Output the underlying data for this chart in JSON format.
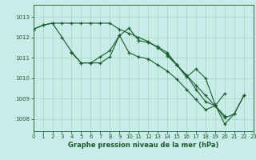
{
  "title": "Graphe pression niveau de la mer (hPa)",
  "background_color": "#c8ede8",
  "grid_color": "#a8d8cc",
  "line_color": "#1a5c2a",
  "xlim": [
    0,
    23
  ],
  "ylim": [
    1007.4,
    1013.6
  ],
  "yticks": [
    1008,
    1009,
    1010,
    1011,
    1012,
    1013
  ],
  "xticks": [
    0,
    1,
    2,
    3,
    4,
    5,
    6,
    7,
    8,
    9,
    10,
    11,
    12,
    13,
    14,
    15,
    16,
    17,
    18,
    19,
    20,
    21,
    22,
    23
  ],
  "series": [
    {
      "x": [
        0,
        1,
        2,
        3,
        4,
        5,
        6,
        7,
        8,
        9,
        10,
        11,
        12,
        13,
        14,
        15,
        16,
        17,
        18,
        19,
        20,
        21,
        22
      ],
      "y": [
        1012.4,
        1012.6,
        1012.7,
        1012.0,
        1011.3,
        1010.75,
        1010.75,
        1011.05,
        1011.35,
        1012.1,
        1012.45,
        1011.85,
        1011.75,
        1011.55,
        1011.25,
        1010.65,
        1010.05,
        1010.45,
        1010.0,
        1008.7,
        1007.75,
        1008.25,
        1009.15
      ]
    },
    {
      "x": [
        0,
        1,
        2,
        3,
        4,
        5,
        6,
        7,
        8,
        9,
        10,
        11,
        12,
        13,
        14,
        15,
        16,
        17,
        18,
        19,
        20
      ],
      "y": [
        1012.4,
        1012.6,
        1012.7,
        1012.7,
        1012.7,
        1012.7,
        1012.7,
        1012.7,
        1012.7,
        1012.4,
        1012.2,
        1012.0,
        1011.8,
        1011.5,
        1011.15,
        1010.65,
        1010.15,
        1009.65,
        1009.15,
        1008.65,
        1008.15
      ]
    },
    {
      "x": [
        4,
        5,
        6,
        7,
        8,
        9,
        10,
        11,
        12,
        13,
        14,
        15,
        16,
        17,
        18,
        19,
        20
      ],
      "y": [
        1011.25,
        1010.75,
        1010.75,
        1010.75,
        1011.05,
        1012.1,
        1011.25,
        1011.05,
        1010.95,
        1010.65,
        1010.35,
        1009.95,
        1009.45,
        1008.95,
        1008.45,
        1008.65,
        1009.25
      ]
    },
    {
      "x": [
        14,
        15,
        16,
        17,
        18,
        19,
        20,
        21,
        22
      ],
      "y": [
        1011.1,
        1010.65,
        1010.15,
        1009.45,
        1008.85,
        1008.65,
        1008.05,
        1008.25,
        1009.15
      ]
    }
  ]
}
